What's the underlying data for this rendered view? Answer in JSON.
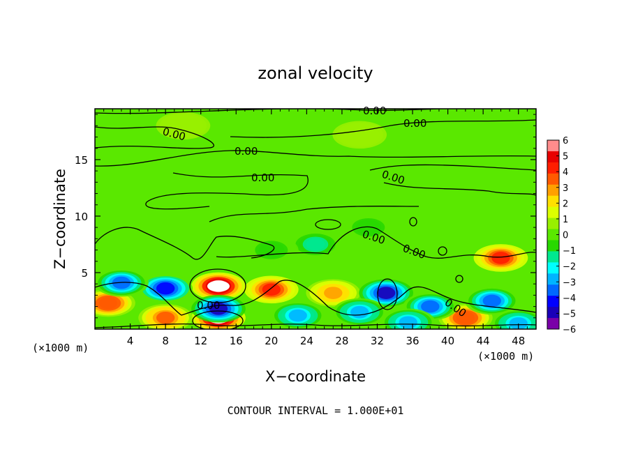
{
  "chart_data": {
    "type": "heatmap",
    "title": "zonal velocity",
    "xlabel": "X−coordinate",
    "ylabel": "Z−coordinate",
    "x_unit": "(×1000 m)",
    "y_unit": "(×1000 m)",
    "xlim": [
      0,
      50
    ],
    "ylim": [
      0,
      19.5
    ],
    "x_ticks": [
      4,
      8,
      12,
      16,
      20,
      24,
      28,
      32,
      36,
      40,
      44,
      48
    ],
    "y_ticks": [
      5,
      10,
      15
    ],
    "contour_interval_text": "CONTOUR INTERVAL = 1.000E+01",
    "contour_labels": [
      "0.00",
      "0.00",
      "0.00",
      "0.00",
      "0.00",
      "0.00",
      "0.00",
      "0.00",
      "0.00",
      "0.00"
    ],
    "colorbar": {
      "min": -6,
      "max": 6,
      "tick_labels": [
        "6",
        "5",
        "4",
        "3",
        "2",
        "1",
        "0",
        "−1",
        "−2",
        "−3",
        "−4",
        "−5",
        "−6"
      ],
      "colors": [
        "#7a00a8",
        "#1a00b8",
        "#0000ff",
        "#0068ff",
        "#00b4ff",
        "#00ffff",
        "#00e890",
        "#28d800",
        "#5ae800",
        "#98f000",
        "#dcff00",
        "#ffe000",
        "#ffa000",
        "#ff5a00",
        "#ff1e00",
        "#e80000",
        "#ff8c8c"
      ]
    },
    "features": [
      {
        "x": 14,
        "z": 3.8,
        "value": 6
      },
      {
        "x": 14,
        "z": 1.0,
        "value": 6
      },
      {
        "x": 20,
        "z": 3.5,
        "value": 4.5
      },
      {
        "x": 46,
        "z": 6.3,
        "value": 4.5
      },
      {
        "x": 42,
        "z": 1.0,
        "value": 4
      },
      {
        "x": 1.5,
        "z": 2.3,
        "value": 4
      },
      {
        "x": 8,
        "z": 1.0,
        "value": 3.5
      },
      {
        "x": 27,
        "z": 3.2,
        "value": 3
      },
      {
        "x": 33,
        "z": 3.2,
        "value": -5
      },
      {
        "x": 8,
        "z": 3.6,
        "value": -4.5
      },
      {
        "x": 14,
        "z": 1.8,
        "value": -5
      },
      {
        "x": 3,
        "z": 4.1,
        "value": -4
      },
      {
        "x": 45,
        "z": 2.5,
        "value": -4
      },
      {
        "x": 38,
        "z": 2.0,
        "value": -3.5
      },
      {
        "x": 23,
        "z": 1.2,
        "value": -3
      },
      {
        "x": 30,
        "z": 1.5,
        "value": -3
      },
      {
        "x": 48,
        "z": 0.5,
        "value": -3
      },
      {
        "x": 35.5,
        "z": 0.6,
        "value": -3
      },
      {
        "x": 25,
        "z": 7.5,
        "value": -1.5
      },
      {
        "x": 20,
        "z": 7.0,
        "value": -1
      },
      {
        "x": 31,
        "z": 9.0,
        "value": -1
      },
      {
        "x": 10,
        "z": 18.0,
        "value": 0.6
      },
      {
        "x": 30,
        "z": 17.2,
        "value": 0.5
      }
    ]
  }
}
